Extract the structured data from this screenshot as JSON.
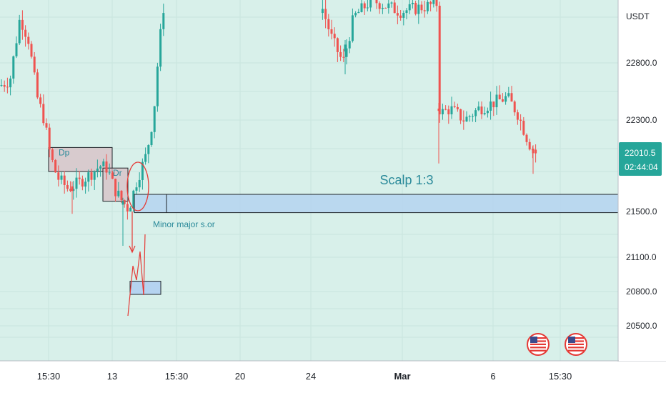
{
  "chart_data": {
    "type": "candlestick",
    "currency": "USDT",
    "y_ticks": [
      20500,
      20800,
      21100,
      21500,
      22300,
      22800
    ],
    "y_tick_labels": [
      "20500.0",
      "20800.0",
      "21100.0",
      "21500.0",
      "22300.0",
      "22800.0"
    ],
    "x_ticks": [
      {
        "label": "15:30",
        "bold": false
      },
      {
        "label": "13",
        "bold": false
      },
      {
        "label": "15:30",
        "bold": false
      },
      {
        "label": "20",
        "bold": false
      },
      {
        "label": "24",
        "bold": false
      },
      {
        "label": "Mar",
        "bold": true
      },
      {
        "label": "6",
        "bold": false
      },
      {
        "label": "15:30",
        "bold": false
      }
    ],
    "last_price": {
      "value": "22010.5",
      "countdown": "02:44:04"
    },
    "ylim": [
      20250,
      23400
    ],
    "grid": true,
    "colors": {
      "up": "#26a69a",
      "down": "#ef5350",
      "background": "#d8f0ea",
      "zone_fill": "#b5d3f0",
      "annotation_red": "#e53935",
      "annotation_teal": "#2a8a9a",
      "price_tag": "#26a69a"
    },
    "annotations": [
      {
        "type": "rectangle",
        "label": "Dp",
        "price_top": 22060,
        "price_bottom": 21850,
        "color": "#d8bfc4"
      },
      {
        "type": "rectangle",
        "label": "Dr",
        "price_top": 21880,
        "price_bottom": 21590,
        "color": "#d8bfc4"
      },
      {
        "type": "ellipse",
        "label": "",
        "color": "#e53935"
      },
      {
        "type": "rectangle",
        "label": "Scalp 1:3",
        "price_top": 21650,
        "price_bottom": 21490,
        "color": "#b5d3f0"
      },
      {
        "type": "text",
        "label": "Minor major s.or"
      },
      {
        "type": "rectangle",
        "label": "",
        "price_top": 20890,
        "price_bottom": 20775,
        "color": "#b5d3f0"
      },
      {
        "type": "arrow",
        "label": ""
      },
      {
        "type": "path",
        "label": "projection zigzag"
      }
    ],
    "events": [
      "us-flag-icon",
      "us-flag-icon"
    ]
  }
}
